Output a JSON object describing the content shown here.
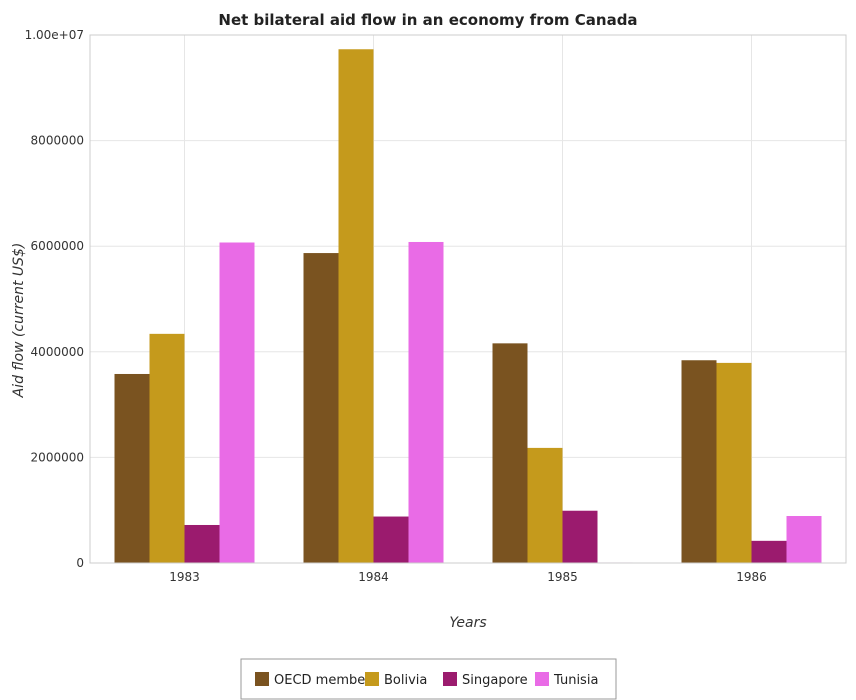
{
  "chart_data": {
    "type": "bar",
    "title": "Net bilateral aid flow in an economy from Canada",
    "xlabel": "Years",
    "ylabel": "Aid flow (current US$)",
    "categories": [
      "1983",
      "1984",
      "1985",
      "1986"
    ],
    "ylim": [
      0,
      10000000
    ],
    "yticks": [
      0,
      2000000,
      4000000,
      6000000,
      8000000,
      10000000
    ],
    "ytick_labels": [
      "0",
      "2000000",
      "4000000",
      "6000000",
      "8000000",
      "1.00e+07"
    ],
    "grid": true,
    "legend_position": "bottom",
    "series": [
      {
        "name": "OECD members",
        "color": "#7a5320",
        "values": [
          3580000,
          5870000,
          4160000,
          3840000
        ]
      },
      {
        "name": "Bolivia",
        "color": "#c59a1c",
        "values": [
          4340000,
          9730000,
          2180000,
          3790000
        ]
      },
      {
        "name": "Singapore",
        "color": "#9b1b6e",
        "values": [
          720000,
          880000,
          990000,
          420000
        ]
      },
      {
        "name": "Tunisia",
        "color": "#e96be6",
        "values": [
          6070000,
          6080000,
          10000,
          890000
        ]
      }
    ]
  }
}
